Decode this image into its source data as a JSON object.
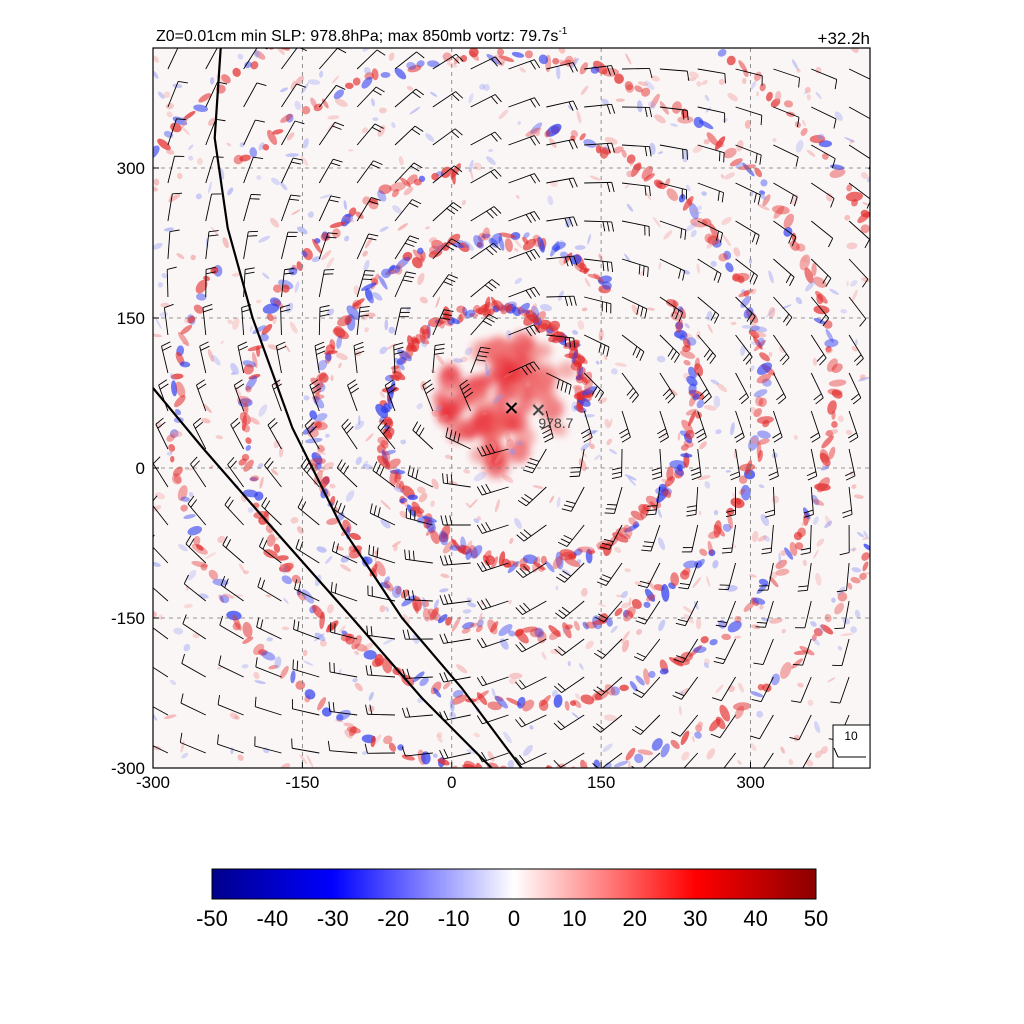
{
  "header": {
    "title_main": "Z0=0.01cm  min SLP: 978.8hPa; max 850mb vortz:  79.7s",
    "title_sup": "-1",
    "forecast_time": "+32.2h"
  },
  "chart_data": {
    "type": "heatmap",
    "field": "850mb relative vorticity",
    "x_ticks": [
      "-300",
      "-150",
      "0",
      "150",
      "300"
    ],
    "y_ticks": [
      "300",
      "150",
      "0",
      "-150",
      "-300"
    ],
    "xlim": [
      -300,
      420
    ],
    "ylim": [
      -300,
      420
    ],
    "grid": "dashed, every 150",
    "colorbar": {
      "ticks": [
        "-50",
        "-40",
        "-30",
        "-20",
        "-10",
        "0",
        "10",
        "20",
        "30",
        "40",
        "50"
      ],
      "range": [
        -50,
        50
      ],
      "colors": [
        "#00008b",
        "#0000ff",
        "#ffffff",
        "#ff0000",
        "#8b0000"
      ]
    },
    "markers": [
      {
        "x": 60,
        "y": 60,
        "label": ""
      },
      {
        "x": 87,
        "y": 58,
        "label": "978.7"
      }
    ],
    "wind_legend": {
      "label": "10"
    },
    "contour_lines": [
      {
        "points": [
          [
            -232,
            420
          ],
          [
            -238,
            330
          ],
          [
            -225,
            240
          ],
          [
            -200,
            150
          ],
          [
            -160,
            40
          ],
          [
            -110,
            -60
          ],
          [
            -50,
            -150
          ],
          [
            10,
            -220
          ],
          [
            70,
            -300
          ]
        ]
      },
      {
        "points": [
          [
            -300,
            80
          ],
          [
            -250,
            20
          ],
          [
            -180,
            -60
          ],
          [
            -100,
            -150
          ],
          [
            -30,
            -230
          ],
          [
            5,
            -265
          ],
          [
            40,
            -300
          ]
        ]
      }
    ]
  }
}
